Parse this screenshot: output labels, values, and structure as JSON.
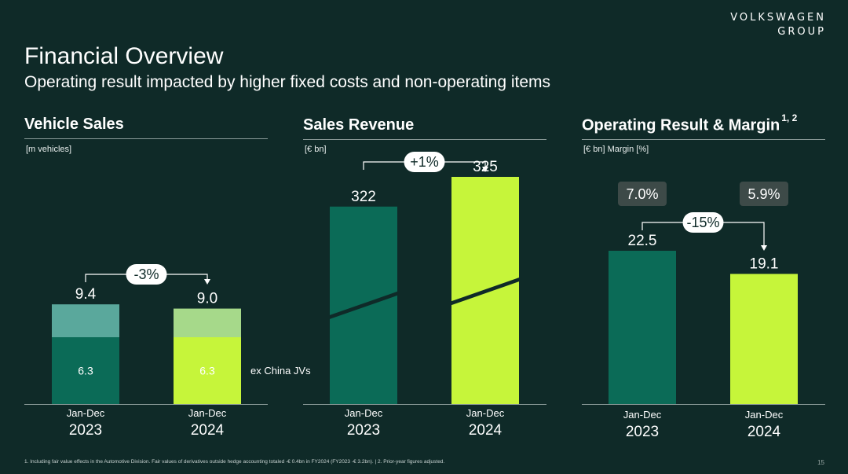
{
  "brand": {
    "line1": "VOLKSWAGEN",
    "line2": "GROUP"
  },
  "header": {
    "title": "Financial Overview",
    "subtitle": "Operating result impacted by higher fixed costs and non-operating items"
  },
  "colors": {
    "background": "#0f2a28",
    "dark_green": "#0b6b57",
    "dark_green_light": "#5aa89c",
    "lime": "#c6f53a",
    "lime_light": "#a6d98a",
    "badge_gray": "#3d4a48"
  },
  "chart_data": [
    {
      "type": "bar",
      "title": "Vehicle Sales",
      "unit_label": "[m vehicles]",
      "categories": [
        "Jan-Dec 2023",
        "Jan-Dec 2024"
      ],
      "category_top": [
        "Jan-Dec",
        "Jan-Dec"
      ],
      "category_year": [
        "2023",
        "2024"
      ],
      "series": [
        {
          "name": "ex China JVs",
          "values": [
            6.3,
            6.3
          ],
          "labels": [
            "6.3",
            "6.3"
          ]
        },
        {
          "name": "China JVs",
          "values": [
            3.1,
            2.7
          ]
        }
      ],
      "totals": [
        9.4,
        9.0
      ],
      "total_labels": [
        "9.4",
        "9.0"
      ],
      "change": "-3%",
      "annotation": "ex China JVs"
    },
    {
      "type": "bar",
      "title": "Sales Revenue",
      "unit_label": "[€ bn]",
      "categories": [
        "Jan-Dec 2023",
        "Jan-Dec 2024"
      ],
      "category_top": [
        "Jan-Dec",
        "Jan-Dec"
      ],
      "category_year": [
        "2023",
        "2024"
      ],
      "values": [
        322,
        325
      ],
      "value_labels": [
        "322",
        "325"
      ],
      "axis_break": true,
      "change": "+1%"
    },
    {
      "type": "bar",
      "title": "Operating Result & Margin",
      "title_sup": "1, 2",
      "unit_label": "[€ bn] Margin [%]",
      "categories": [
        "Jan-Dec 2023",
        "Jan-Dec 2024"
      ],
      "category_top": [
        "Jan-Dec",
        "Jan-Dec"
      ],
      "category_year": [
        "2023",
        "2024"
      ],
      "values": [
        22.5,
        19.1
      ],
      "value_labels": [
        "22.5",
        "19.1"
      ],
      "margins": [
        "7.0%",
        "5.9%"
      ],
      "change": "-15%"
    }
  ],
  "footnote": "1. Including fair value effects in the Automotive Division. Fair values of derivatives outside hedge accounting totaled -€ 0.4bn in FY2024 (FY2023 -€ 3.2bn). | 2. Prior-year figures adjusted.",
  "page_number": "15"
}
